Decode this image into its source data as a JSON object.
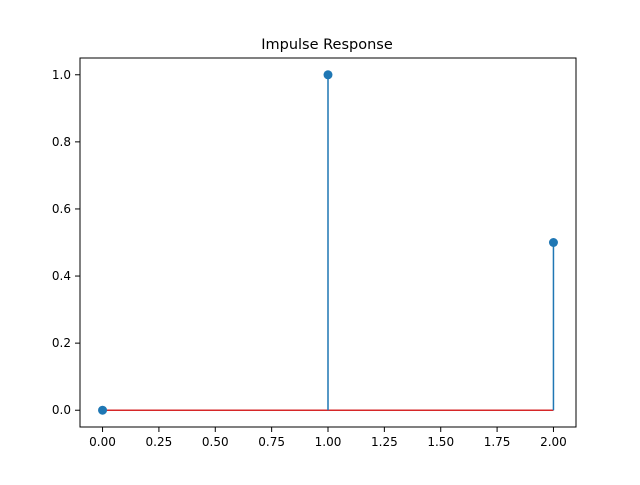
{
  "chart_data": {
    "type": "stem",
    "title": "Impulse Response",
    "xlabel": "",
    "ylabel": "",
    "x": [
      0,
      1,
      2
    ],
    "y": [
      0,
      1,
      0.5
    ],
    "xlim": [
      -0.1,
      2.1
    ],
    "ylim": [
      -0.05,
      1.05
    ],
    "xticks": [
      0.0,
      0.25,
      0.5,
      0.75,
      1.0,
      1.25,
      1.5,
      1.75,
      2.0
    ],
    "xtick_labels": [
      "0.00",
      "0.25",
      "0.50",
      "0.75",
      "1.00",
      "1.25",
      "1.50",
      "1.75",
      "2.00"
    ],
    "yticks": [
      0.0,
      0.2,
      0.4,
      0.6,
      0.8,
      1.0
    ],
    "ytick_labels": [
      "0.0",
      "0.2",
      "0.4",
      "0.6",
      "0.8",
      "1.0"
    ],
    "grid": false,
    "colors": {
      "stem": "#1f77b4",
      "marker": "#1f77b4",
      "baseline": "#d62728",
      "axes": "#000000"
    }
  }
}
